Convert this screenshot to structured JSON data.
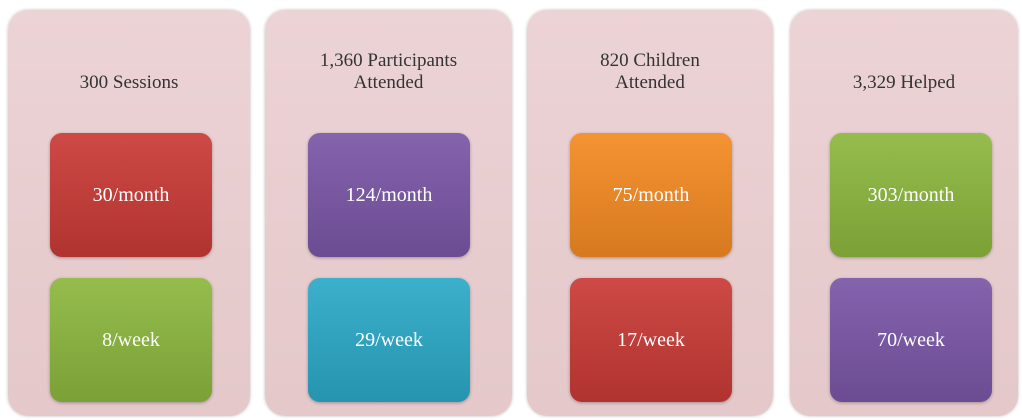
{
  "columns": [
    {
      "title_lines": [
        "300 Sessions"
      ],
      "boxes": [
        {
          "text": "30/month",
          "color": "#c93a36"
        },
        {
          "text": "8/week",
          "color": "#8cb73e"
        }
      ]
    },
    {
      "title_lines": [
        "1,360 Participants",
        "Attended"
      ],
      "boxes": [
        {
          "text": "124/month",
          "color": "#7a56a6"
        },
        {
          "text": "29/week",
          "color": "#2ba9c7"
        }
      ]
    },
    {
      "title_lines": [
        "820 Children",
        "Attended"
      ],
      "boxes": [
        {
          "text": "75/month",
          "color": "#f48a22"
        },
        {
          "text": "17/week",
          "color": "#c93a36"
        }
      ]
    },
    {
      "title_lines": [
        "3,329 Helped"
      ],
      "boxes": [
        {
          "text": "303/month",
          "color": "#8cb73e"
        },
        {
          "text": "70/week",
          "color": "#7a56a6"
        }
      ]
    }
  ]
}
